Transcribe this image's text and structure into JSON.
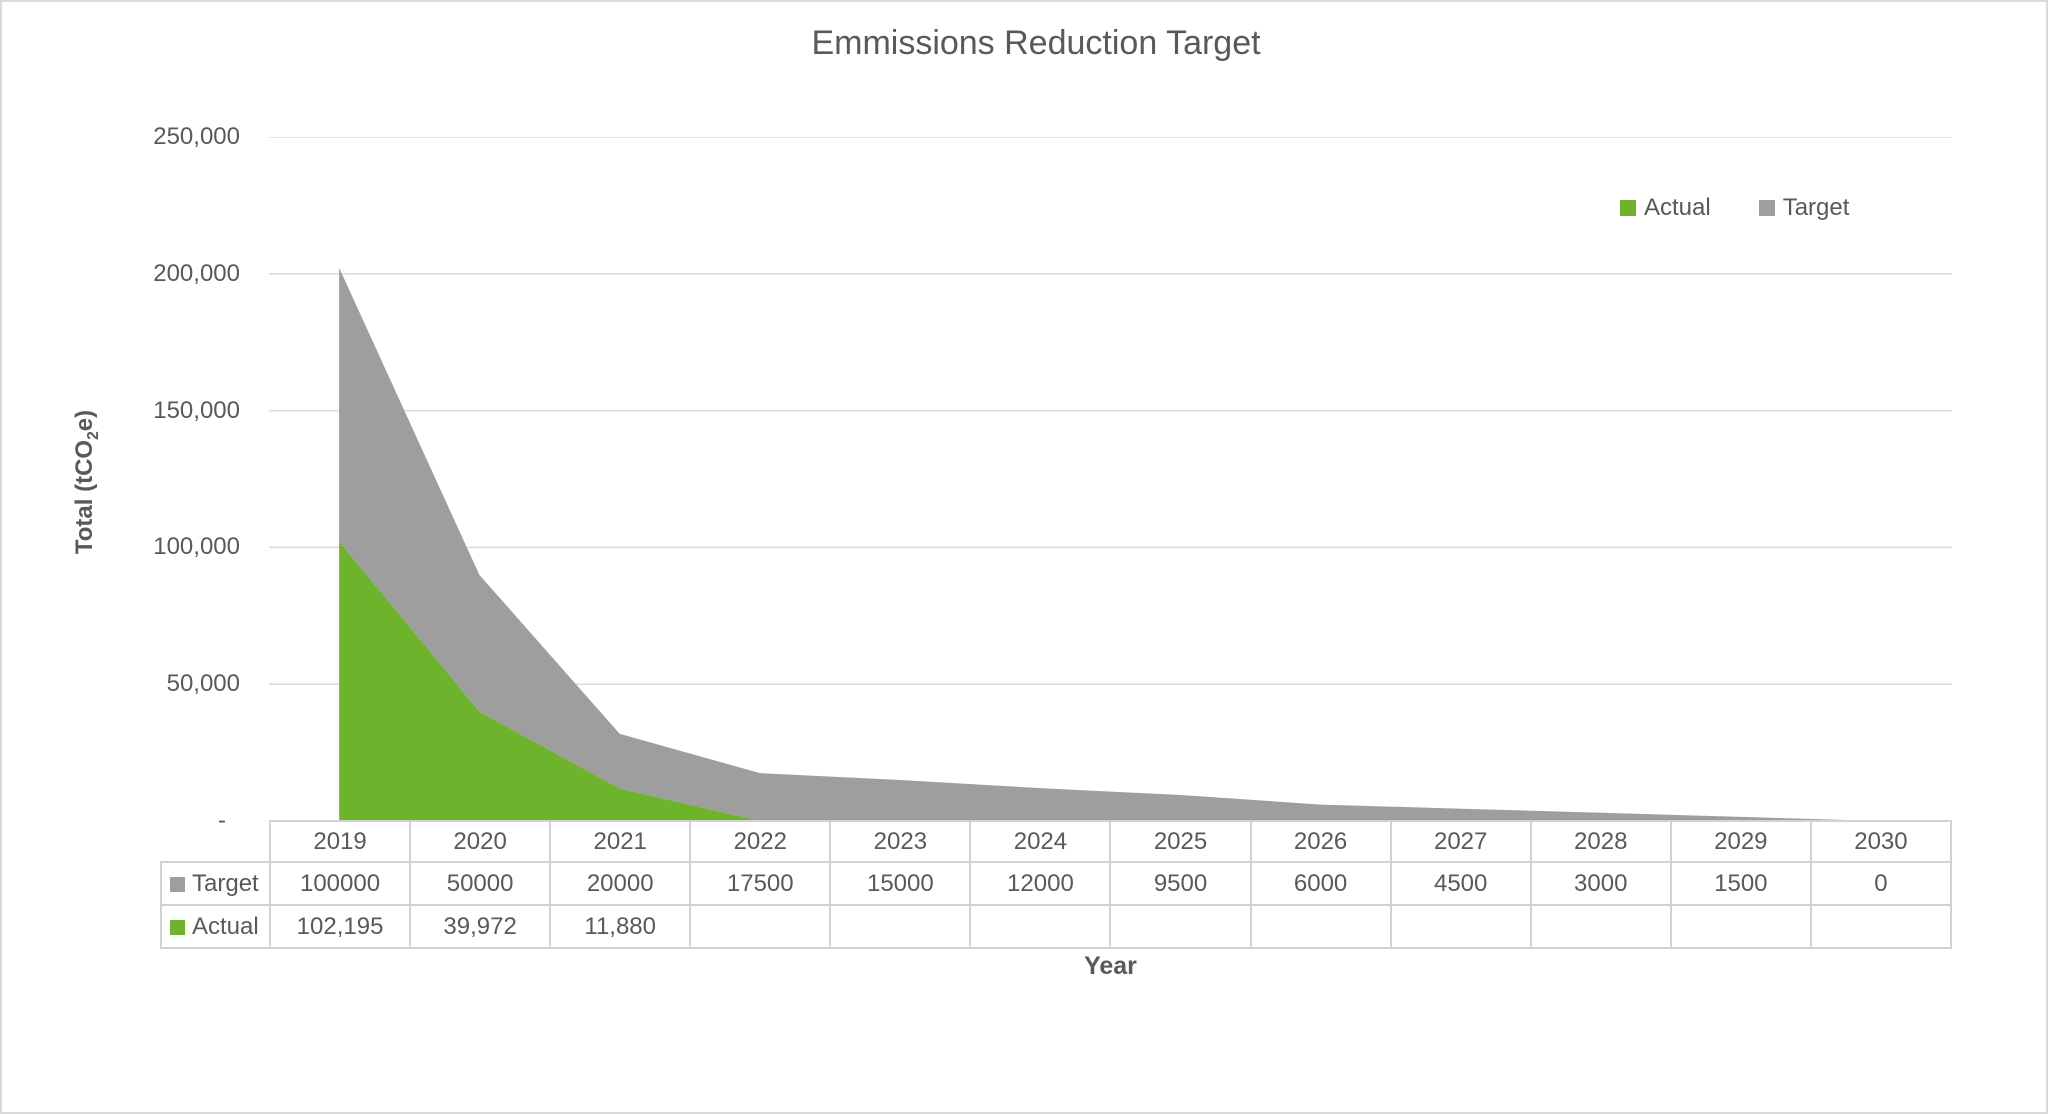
{
  "title": "Emmissions Reduction Target",
  "colors": {
    "actual": "#6DB32C",
    "target": "#9E9E9E",
    "text": "#595959",
    "grid": "#DADADA",
    "table_border": "#D3D3D3"
  },
  "y_axis": {
    "title_prefix": "Total (tCO",
    "title_sub": "2",
    "title_suffix": "e)",
    "tick_labels": [
      "250,000",
      "200,000",
      "150,000",
      "100,000",
      "50,000",
      "-"
    ]
  },
  "x_axis": {
    "title": "Year"
  },
  "legend": [
    {
      "name": "Actual",
      "color_key": "actual"
    },
    {
      "name": "Target",
      "color_key": "target"
    }
  ],
  "table": {
    "years": [
      "2019",
      "2020",
      "2021",
      "2022",
      "2023",
      "2024",
      "2025",
      "2026",
      "2027",
      "2028",
      "2029",
      "2030"
    ],
    "rows": [
      {
        "label": "Target",
        "color_key": "target",
        "values": [
          "100000",
          "50000",
          "20000",
          "17500",
          "15000",
          "12000",
          "9500",
          "6000",
          "4500",
          "3000",
          "1500",
          "0"
        ]
      },
      {
        "label": "Actual",
        "color_key": "actual",
        "values": [
          "102,195",
          "39,972",
          "11,880",
          "",
          "",
          "",
          "",
          "",
          "",
          "",
          "",
          ""
        ]
      }
    ]
  },
  "chart_data": {
    "type": "area",
    "stacked": true,
    "title": "Emmissions Reduction Target",
    "xlabel": "Year",
    "ylabel": "Total (tCO2e)",
    "x": [
      2019,
      2020,
      2021,
      2022,
      2023,
      2024,
      2025,
      2026,
      2027,
      2028,
      2029,
      2030
    ],
    "ylim": [
      0,
      250000
    ],
    "ytick_interval": 50000,
    "grid": true,
    "legend_position": "top-right",
    "series": [
      {
        "name": "Actual",
        "color": "#6DB32C",
        "values": [
          102195,
          39972,
          11880,
          null,
          null,
          null,
          null,
          null,
          null,
          null,
          null,
          null
        ]
      },
      {
        "name": "Target",
        "color": "#9E9E9E",
        "values": [
          100000,
          50000,
          20000,
          17500,
          15000,
          12000,
          9500,
          6000,
          4500,
          3000,
          1500,
          0
        ]
      }
    ]
  }
}
